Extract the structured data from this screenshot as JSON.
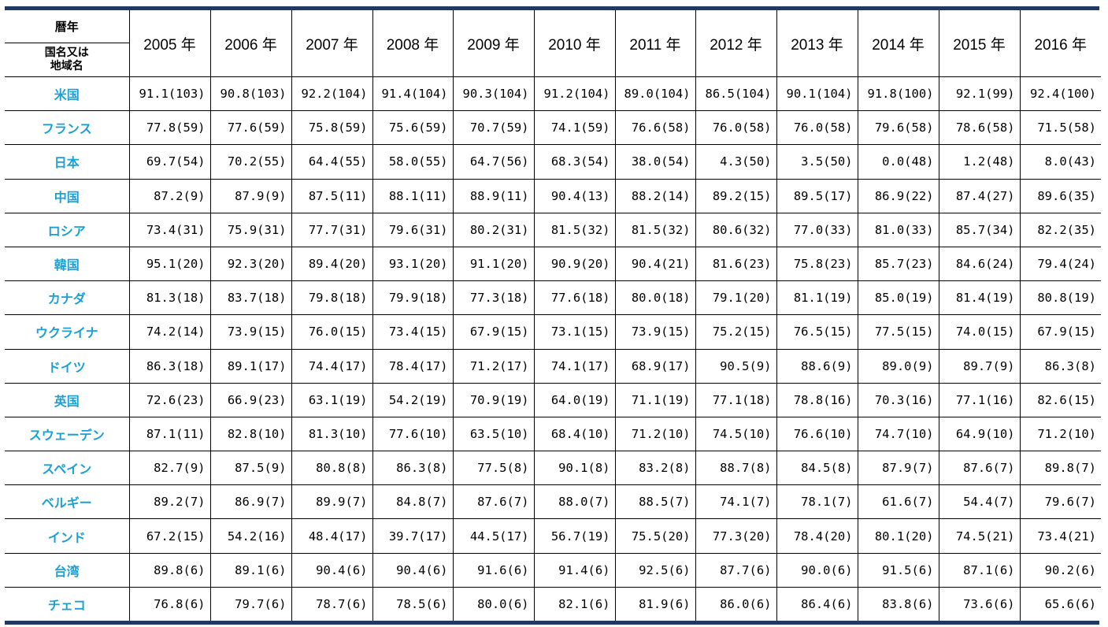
{
  "header": {
    "corner_top": "暦年",
    "corner_bottom_line1": "国名又は",
    "corner_bottom_line2": "地域名",
    "years": [
      "2005 年",
      "2006 年",
      "2007 年",
      "2008 年",
      "2009 年",
      "2010 年",
      "2011 年",
      "2012 年",
      "2013 年",
      "2014 年",
      "2015 年",
      "2016 年"
    ]
  },
  "rows": [
    {
      "name": "米国",
      "cells": [
        "91.1(103)",
        "90.8(103)",
        "92.2(104)",
        "91.4(104)",
        "90.3(104)",
        "91.2(104)",
        "89.0(104)",
        "86.5(104)",
        "90.1(104)",
        "91.8(100)",
        "92.1(99)",
        "92.4(100)"
      ]
    },
    {
      "name": "フランス",
      "cells": [
        "77.8(59)",
        "77.6(59)",
        "75.8(59)",
        "75.6(59)",
        "70.7(59)",
        "74.1(59)",
        "76.6(58)",
        "76.0(58)",
        "76.0(58)",
        "79.6(58)",
        "78.6(58)",
        "71.5(58)"
      ]
    },
    {
      "name": "日本",
      "cells": [
        "69.7(54)",
        "70.2(55)",
        "64.4(55)",
        "58.0(55)",
        "64.7(56)",
        "68.3(54)",
        "38.0(54)",
        "4.3(50)",
        "3.5(50)",
        "0.0(48)",
        "1.2(48)",
        "8.0(43)"
      ]
    },
    {
      "name": "中国",
      "cells": [
        "87.2(9)",
        "87.9(9)",
        "87.5(11)",
        "88.1(11)",
        "88.9(11)",
        "90.4(13)",
        "88.2(14)",
        "89.2(15)",
        "89.5(17)",
        "86.9(22)",
        "87.4(27)",
        "89.6(35)"
      ]
    },
    {
      "name": "ロシア",
      "cells": [
        "73.4(31)",
        "75.9(31)",
        "77.7(31)",
        "79.6(31)",
        "80.2(31)",
        "81.5(32)",
        "81.5(32)",
        "80.6(32)",
        "77.0(33)",
        "81.0(33)",
        "85.7(34)",
        "82.2(35)"
      ]
    },
    {
      "name": "韓国",
      "cells": [
        "95.1(20)",
        "92.3(20)",
        "89.4(20)",
        "93.1(20)",
        "91.1(20)",
        "90.9(20)",
        "90.4(21)",
        "81.6(23)",
        "75.8(23)",
        "85.7(23)",
        "84.6(24)",
        "79.4(24)"
      ]
    },
    {
      "name": "カナダ",
      "cells": [
        "81.3(18)",
        "83.7(18)",
        "79.8(18)",
        "79.9(18)",
        "77.3(18)",
        "77.6(18)",
        "80.0(18)",
        "79.1(20)",
        "81.1(19)",
        "85.0(19)",
        "81.4(19)",
        "80.8(19)"
      ]
    },
    {
      "name": "ウクライナ",
      "cells": [
        "74.2(14)",
        "73.9(15)",
        "76.0(15)",
        "73.4(15)",
        "67.9(15)",
        "73.1(15)",
        "73.9(15)",
        "75.2(15)",
        "76.5(15)",
        "77.5(15)",
        "74.0(15)",
        "67.9(15)"
      ]
    },
    {
      "name": "ドイツ",
      "cells": [
        "86.3(18)",
        "89.1(17)",
        "74.4(17)",
        "78.4(17)",
        "71.2(17)",
        "74.1(17)",
        "68.9(17)",
        "90.5(9)",
        "88.6(9)",
        "89.0(9)",
        "89.7(9)",
        "86.3(8)"
      ]
    },
    {
      "name": "英国",
      "cells": [
        "72.6(23)",
        "66.9(23)",
        "63.1(19)",
        "54.2(19)",
        "70.9(19)",
        "64.0(19)",
        "71.1(19)",
        "77.1(18)",
        "78.8(16)",
        "70.3(16)",
        "77.1(16)",
        "82.6(15)"
      ]
    },
    {
      "name": "スウェーデン",
      "cells": [
        "87.1(11)",
        "82.8(10)",
        "81.3(10)",
        "77.6(10)",
        "63.5(10)",
        "68.4(10)",
        "71.2(10)",
        "74.5(10)",
        "76.6(10)",
        "74.7(10)",
        "64.9(10)",
        "71.2(10)"
      ]
    },
    {
      "name": "スペイン",
      "cells": [
        "82.7(9)",
        "87.5(9)",
        "80.8(8)",
        "86.3(8)",
        "77.5(8)",
        "90.1(8)",
        "83.2(8)",
        "88.7(8)",
        "84.5(8)",
        "87.9(7)",
        "87.6(7)",
        "89.8(7)"
      ]
    },
    {
      "name": "ベルギー",
      "cells": [
        "89.2(7)",
        "86.9(7)",
        "89.9(7)",
        "84.8(7)",
        "87.6(7)",
        "88.0(7)",
        "88.5(7)",
        "74.1(7)",
        "78.1(7)",
        "61.6(7)",
        "54.4(7)",
        "79.6(7)"
      ]
    },
    {
      "name": "インド",
      "cells": [
        "67.2(15)",
        "54.2(16)",
        "48.4(17)",
        "39.7(17)",
        "44.5(17)",
        "56.7(19)",
        "75.5(20)",
        "77.3(20)",
        "78.4(20)",
        "80.1(20)",
        "74.5(21)",
        "73.4(21)"
      ]
    },
    {
      "name": "台湾",
      "cells": [
        "89.8(6)",
        "89.1(6)",
        "90.4(6)",
        "90.4(6)",
        "91.6(6)",
        "91.4(6)",
        "92.5(6)",
        "87.7(6)",
        "90.0(6)",
        "91.5(6)",
        "87.1(6)",
        "90.2(6)"
      ]
    },
    {
      "name": "チェコ",
      "cells": [
        "76.8(6)",
        "79.7(6)",
        "78.7(6)",
        "78.5(6)",
        "80.0(6)",
        "82.1(6)",
        "81.9(6)",
        "86.0(6)",
        "86.4(6)",
        "83.8(6)",
        "73.6(6)",
        "65.6(6)"
      ]
    }
  ]
}
